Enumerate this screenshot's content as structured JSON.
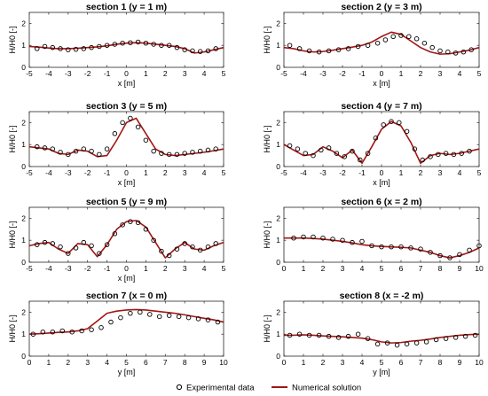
{
  "chart_data": [
    {
      "type": "line",
      "title": "section 1 (y = 1 m)",
      "xlabel": "x [m]",
      "ylabel": "H/H0 [-]",
      "xlim": [
        -5,
        5
      ],
      "ylim": [
        0,
        2.5
      ],
      "xticks": [
        "-5",
        "-4",
        "-3",
        "-2",
        "-1",
        "0",
        "1",
        "2",
        "3",
        "4",
        "5"
      ],
      "yticks": [
        "0",
        "1",
        "2"
      ],
      "series": [
        {
          "name": "Experimental data",
          "kind": "marker",
          "x": [
            -4.6,
            -4.2,
            -3.8,
            -3.4,
            -3.0,
            -2.6,
            -2.2,
            -1.8,
            -1.4,
            -1.0,
            -0.6,
            -0.2,
            0.2,
            0.6,
            1.0,
            1.4,
            1.8,
            2.2,
            2.6,
            3.0,
            3.4,
            3.8,
            4.2,
            4.6
          ],
          "y": [
            0.85,
            0.95,
            0.9,
            0.85,
            0.8,
            0.82,
            0.85,
            0.9,
            0.95,
            1.0,
            1.05,
            1.1,
            1.12,
            1.15,
            1.1,
            1.05,
            1.0,
            1.0,
            0.9,
            0.8,
            0.75,
            0.72,
            0.75,
            0.85
          ]
        },
        {
          "name": "Numerical solution",
          "kind": "line",
          "x": [
            -5,
            -4.5,
            -4,
            -3.5,
            -3,
            -2.5,
            -2,
            -1.5,
            -1,
            -0.5,
            0,
            0.5,
            1,
            1.5,
            2,
            2.5,
            3,
            3.5,
            4,
            4.5,
            5
          ],
          "y": [
            0.95,
            0.92,
            0.88,
            0.85,
            0.85,
            0.87,
            0.9,
            0.93,
            0.98,
            1.05,
            1.1,
            1.12,
            1.1,
            1.05,
            1.0,
            0.95,
            0.85,
            0.65,
            0.7,
            0.8,
            0.9
          ]
        }
      ]
    },
    {
      "type": "line",
      "title": "section 2 (y = 3 m)",
      "xlabel": "x [m]",
      "ylabel": "H/H0 [-]",
      "xlim": [
        -5,
        5
      ],
      "ylim": [
        0,
        2.5
      ],
      "xticks": [
        "-5",
        "-4",
        "-3",
        "-2",
        "-1",
        "0",
        "1",
        "2",
        "3",
        "4",
        "5"
      ],
      "yticks": [
        "0",
        "1",
        "2"
      ],
      "series": [
        {
          "name": "Experimental data",
          "kind": "marker",
          "x": [
            -4.7,
            -4.2,
            -3.7,
            -3.2,
            -2.7,
            -2.2,
            -1.7,
            -1.2,
            -0.7,
            -0.2,
            0.2,
            0.6,
            1.0,
            1.4,
            1.8,
            2.2,
            2.6,
            3.0,
            3.4,
            3.8,
            4.2,
            4.6
          ],
          "y": [
            1.0,
            0.85,
            0.75,
            0.7,
            0.75,
            0.8,
            0.85,
            0.95,
            1.0,
            1.1,
            1.25,
            1.4,
            1.45,
            1.4,
            1.3,
            1.1,
            0.9,
            0.75,
            0.7,
            0.65,
            0.7,
            0.8
          ]
        },
        {
          "name": "Numerical solution",
          "kind": "line",
          "x": [
            -5,
            -4.5,
            -4,
            -3.5,
            -3,
            -2.5,
            -2,
            -1.5,
            -1,
            -0.5,
            0,
            0.5,
            1,
            1.5,
            2,
            2.5,
            3,
            3.5,
            4,
            4.5,
            5
          ],
          "y": [
            0.9,
            0.85,
            0.75,
            0.7,
            0.72,
            0.78,
            0.85,
            0.92,
            1.0,
            1.15,
            1.4,
            1.6,
            1.5,
            1.2,
            0.9,
            0.7,
            0.6,
            0.62,
            0.7,
            0.78,
            0.9
          ]
        }
      ]
    },
    {
      "type": "line",
      "title": "section 3 (y = 5 m)",
      "xlabel": "x [m]",
      "ylabel": "H/H0 [-]",
      "xlim": [
        -5,
        5
      ],
      "ylim": [
        0,
        2.5
      ],
      "xticks": [
        "-5",
        "-4",
        "-3",
        "-2",
        "-1",
        "0",
        "1",
        "2",
        "3",
        "4",
        "5"
      ],
      "yticks": [
        "0",
        "1",
        "2"
      ],
      "series": [
        {
          "name": "Experimental data",
          "kind": "marker",
          "x": [
            -4.6,
            -4.2,
            -3.8,
            -3.4,
            -3.0,
            -2.6,
            -2.2,
            -1.8,
            -1.4,
            -1.0,
            -0.6,
            -0.2,
            0.2,
            0.6,
            1.0,
            1.4,
            1.8,
            2.2,
            2.6,
            3.0,
            3.4,
            3.8,
            4.2,
            4.6
          ],
          "y": [
            0.9,
            0.85,
            0.8,
            0.65,
            0.55,
            0.7,
            0.8,
            0.7,
            0.55,
            0.8,
            1.5,
            2.0,
            2.2,
            1.8,
            1.2,
            0.7,
            0.6,
            0.55,
            0.55,
            0.6,
            0.65,
            0.7,
            0.75,
            0.8
          ]
        },
        {
          "name": "Numerical solution",
          "kind": "line",
          "x": [
            -5,
            -4.5,
            -4,
            -3.5,
            -3,
            -2.5,
            -2,
            -1.5,
            -1,
            -0.5,
            0,
            0.5,
            1,
            1.5,
            2,
            2.5,
            3,
            3.5,
            4,
            4.5,
            5
          ],
          "y": [
            0.9,
            0.85,
            0.8,
            0.6,
            0.55,
            0.75,
            0.7,
            0.45,
            0.5,
            1.2,
            2.0,
            2.2,
            1.5,
            0.8,
            0.55,
            0.5,
            0.55,
            0.6,
            0.65,
            0.72,
            0.8
          ]
        }
      ]
    },
    {
      "type": "line",
      "title": "section 4 (y = 7 m)",
      "xlabel": "x [m]",
      "ylabel": "H/H0 [-]",
      "xlim": [
        -5,
        5
      ],
      "ylim": [
        0,
        2.5
      ],
      "xticks": [
        "-5",
        "-4",
        "-3",
        "-2",
        "-1",
        "0",
        "1",
        "2",
        "3",
        "4",
        "5"
      ],
      "yticks": [
        "0",
        "1",
        "2"
      ],
      "series": [
        {
          "name": "Experimental data",
          "kind": "marker",
          "x": [
            -4.7,
            -4.3,
            -3.9,
            -3.5,
            -3.1,
            -2.7,
            -2.3,
            -1.9,
            -1.5,
            -1.1,
            -0.7,
            -0.3,
            0.1,
            0.5,
            0.9,
            1.3,
            1.7,
            2.1,
            2.5,
            2.9,
            3.3,
            3.7,
            4.1,
            4.5
          ],
          "y": [
            0.95,
            0.8,
            0.6,
            0.5,
            0.75,
            0.85,
            0.6,
            0.45,
            0.7,
            0.3,
            0.6,
            1.3,
            1.9,
            2.05,
            2.0,
            1.6,
            0.8,
            0.3,
            0.45,
            0.55,
            0.6,
            0.55,
            0.6,
            0.7
          ]
        },
        {
          "name": "Numerical solution",
          "kind": "line",
          "x": [
            -5,
            -4.5,
            -4,
            -3.5,
            -3,
            -2.5,
            -2,
            -1.5,
            -1,
            -0.5,
            0,
            0.5,
            1,
            1.5,
            2,
            2.5,
            3,
            3.5,
            4,
            4.5,
            5
          ],
          "y": [
            1.0,
            0.75,
            0.5,
            0.55,
            0.9,
            0.7,
            0.4,
            0.75,
            0.15,
            0.9,
            1.7,
            2.05,
            1.85,
            1.1,
            0.15,
            0.5,
            0.6,
            0.55,
            0.6,
            0.7,
            0.8
          ]
        }
      ]
    },
    {
      "type": "line",
      "title": "section 5 (y = 9 m)",
      "xlabel": "x [m]",
      "ylabel": "H/H0 [-]",
      "xlim": [
        -5,
        5
      ],
      "ylim": [
        0,
        2.5
      ],
      "xticks": [
        "-5",
        "-4",
        "-3",
        "-2",
        "-1",
        "0",
        "1",
        "2",
        "3",
        "4",
        "5"
      ],
      "yticks": [
        "0",
        "1",
        "2"
      ],
      "series": [
        {
          "name": "Experimental data",
          "kind": "marker",
          "x": [
            -4.6,
            -4.2,
            -3.8,
            -3.4,
            -3.0,
            -2.6,
            -2.2,
            -1.8,
            -1.4,
            -1.0,
            -0.6,
            -0.2,
            0.2,
            0.6,
            1.0,
            1.4,
            1.8,
            2.2,
            2.6,
            3.0,
            3.4,
            3.8,
            4.2,
            4.6
          ],
          "y": [
            0.8,
            0.9,
            0.85,
            0.7,
            0.4,
            0.65,
            0.9,
            0.75,
            0.4,
            0.8,
            1.3,
            1.7,
            1.85,
            1.8,
            1.5,
            1.0,
            0.5,
            0.3,
            0.6,
            0.85,
            0.7,
            0.55,
            0.7,
            0.85
          ]
        },
        {
          "name": "Numerical solution",
          "kind": "line",
          "x": [
            -5,
            -4.5,
            -4,
            -3.5,
            -3,
            -2.5,
            -2,
            -1.5,
            -1,
            -0.5,
            0,
            0.5,
            1,
            1.5,
            2,
            2.5,
            3,
            3.5,
            4,
            4.5,
            5
          ],
          "y": [
            0.75,
            0.85,
            0.9,
            0.6,
            0.4,
            0.85,
            0.8,
            0.25,
            0.8,
            1.5,
            1.85,
            1.9,
            1.6,
            0.9,
            0.2,
            0.6,
            0.9,
            0.6,
            0.55,
            0.75,
            0.9
          ]
        }
      ]
    },
    {
      "type": "line",
      "title": "section 6 (x = 2 m)",
      "xlabel": "",
      "ylabel": "H/H0 [-]",
      "xlim": [
        0,
        10
      ],
      "ylim": [
        0,
        2.5
      ],
      "xticks": [
        "0",
        "1",
        "2",
        "3",
        "4",
        "5",
        "6",
        "7",
        "8",
        "9",
        "10"
      ],
      "yticks": [
        "0",
        "1",
        "2"
      ],
      "series": [
        {
          "name": "Experimental data",
          "kind": "marker",
          "x": [
            0.5,
            1.0,
            1.5,
            2.0,
            2.5,
            3.0,
            3.5,
            4.0,
            4.5,
            5.0,
            5.5,
            6.0,
            6.5,
            7.0,
            7.5,
            8.0,
            8.5,
            9.0,
            9.5,
            10.0
          ],
          "y": [
            1.1,
            1.15,
            1.15,
            1.1,
            1.05,
            1.0,
            0.9,
            0.95,
            0.75,
            0.7,
            0.7,
            0.7,
            0.65,
            0.6,
            0.45,
            0.3,
            0.2,
            0.35,
            0.55,
            0.75
          ]
        },
        {
          "name": "Numerical solution",
          "kind": "line",
          "x": [
            0,
            0.5,
            1,
            1.5,
            2,
            2.5,
            3,
            3.5,
            4,
            4.5,
            5,
            5.5,
            6,
            6.5,
            7,
            7.5,
            8,
            8.5,
            9,
            9.5,
            10
          ],
          "y": [
            1.1,
            1.1,
            1.1,
            1.08,
            1.05,
            1.0,
            0.95,
            0.88,
            0.8,
            0.75,
            0.72,
            0.7,
            0.68,
            0.65,
            0.55,
            0.45,
            0.3,
            0.2,
            0.3,
            0.45,
            0.65
          ]
        }
      ]
    },
    {
      "type": "line",
      "title": "section 7 (x = 0 m)",
      "xlabel": "y [m]",
      "ylabel": "H/H0 [-]",
      "xlim": [
        0,
        10
      ],
      "ylim": [
        0,
        2.5
      ],
      "xticks": [
        "0",
        "1",
        "2",
        "3",
        "4",
        "5",
        "6",
        "7",
        "8",
        "9",
        "10"
      ],
      "yticks": [
        "0",
        "1",
        "2"
      ],
      "series": [
        {
          "name": "Experimental data",
          "kind": "marker",
          "x": [
            0.2,
            0.7,
            1.2,
            1.7,
            2.2,
            2.7,
            3.2,
            3.7,
            4.2,
            4.7,
            5.2,
            5.7,
            6.2,
            6.7,
            7.2,
            7.7,
            8.2,
            8.7,
            9.2,
            9.7
          ],
          "y": [
            1.0,
            1.1,
            1.1,
            1.15,
            1.1,
            1.15,
            1.2,
            1.3,
            1.55,
            1.75,
            1.95,
            2.0,
            1.9,
            1.8,
            1.85,
            1.8,
            1.75,
            1.7,
            1.65,
            1.55
          ]
        },
        {
          "name": "Numerical solution",
          "kind": "line",
          "x": [
            0,
            0.5,
            1,
            1.5,
            2,
            2.5,
            3,
            3.5,
            4,
            4.5,
            5,
            5.5,
            6,
            6.5,
            7,
            7.5,
            8,
            8.5,
            9,
            9.5,
            10
          ],
          "y": [
            1.0,
            1.02,
            1.05,
            1.08,
            1.1,
            1.15,
            1.25,
            1.6,
            1.95,
            2.05,
            2.1,
            2.12,
            2.1,
            2.05,
            2.0,
            1.95,
            1.88,
            1.8,
            1.72,
            1.65,
            1.55
          ]
        }
      ]
    },
    {
      "type": "line",
      "title": "section 8 (x = -2 m)",
      "xlabel": "y [m]",
      "ylabel": "H/H0 [-]",
      "xlim": [
        0,
        10
      ],
      "ylim": [
        0,
        2.5
      ],
      "xticks": [
        "0",
        "1",
        "2",
        "3",
        "4",
        "5",
        "6",
        "7",
        "8",
        "9",
        "10"
      ],
      "yticks": [
        "0",
        "1",
        "2"
      ],
      "series": [
        {
          "name": "Experimental data",
          "kind": "marker",
          "x": [
            0.3,
            0.8,
            1.3,
            1.8,
            2.3,
            2.8,
            3.3,
            3.8,
            4.3,
            4.8,
            5.3,
            5.8,
            6.3,
            6.8,
            7.3,
            7.8,
            8.3,
            8.8,
            9.3,
            9.8
          ],
          "y": [
            0.95,
            1.0,
            0.95,
            0.95,
            0.9,
            0.85,
            0.9,
            1.0,
            0.8,
            0.55,
            0.6,
            0.5,
            0.55,
            0.6,
            0.65,
            0.75,
            0.8,
            0.85,
            0.9,
            0.95
          ]
        },
        {
          "name": "Numerical solution",
          "kind": "line",
          "x": [
            0,
            0.5,
            1,
            1.5,
            2,
            2.5,
            3,
            3.5,
            4,
            4.5,
            5,
            5.5,
            6,
            6.5,
            7,
            7.5,
            8,
            8.5,
            9,
            9.5,
            10
          ],
          "y": [
            0.95,
            0.95,
            0.97,
            0.95,
            0.92,
            0.9,
            0.88,
            0.85,
            0.82,
            0.75,
            0.65,
            0.6,
            0.62,
            0.68,
            0.72,
            0.78,
            0.85,
            0.9,
            0.95,
            0.98,
            1.0
          ]
        }
      ]
    }
  ],
  "legend": {
    "items": [
      {
        "label": "Experimental data",
        "marker": "circle"
      },
      {
        "label": "Numerical solution",
        "marker": "line"
      }
    ]
  },
  "colors": {
    "numerical_line": "#a31515",
    "marker_stroke": "#000000",
    "axis": "#262626",
    "text": "#000000"
  }
}
